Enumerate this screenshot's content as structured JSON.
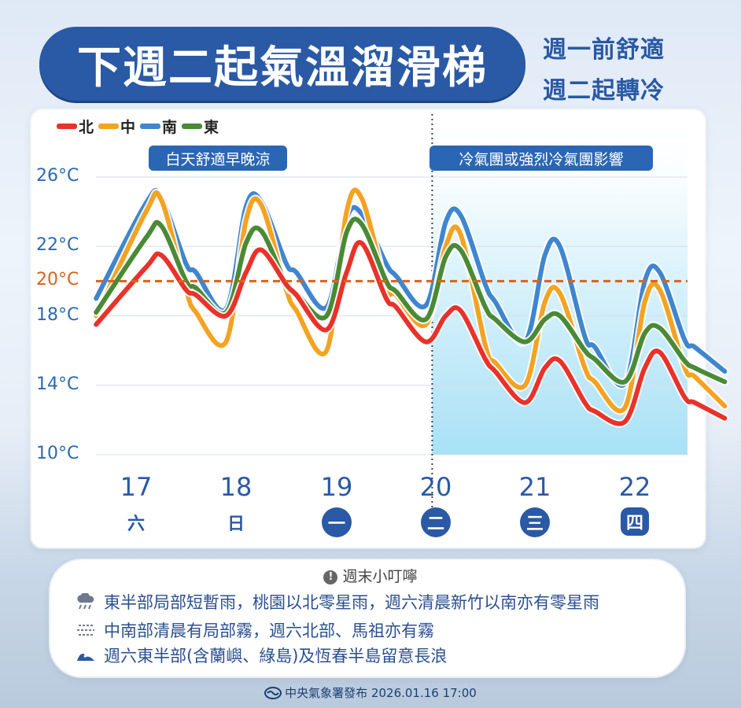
{
  "header": {
    "title": "下週二起氣溫溜滑梯",
    "subtitle_line1": "週一前舒適",
    "subtitle_line2": "週二起轉冷"
  },
  "tags": {
    "left": "白天舒適早晚涼",
    "right": "冷氣團或強烈冷氣團影響"
  },
  "colors": {
    "north": "#e8322a",
    "central": "#f3a322",
    "south": "#3f86cf",
    "east": "#4a8a36",
    "title_bg": "#2a59a5",
    "reference_line": "#d9621e",
    "cold_shade": "#bfe9f8"
  },
  "chart_data": {
    "type": "line",
    "y_unit": "°C",
    "ylim": [
      10,
      26
    ],
    "yticks": [
      {
        "value": 26,
        "label": "26°C"
      },
      {
        "value": 22,
        "label": "22°C"
      },
      {
        "value": 20,
        "label": "20°C"
      },
      {
        "value": 18,
        "label": "18°C"
      },
      {
        "value": 14,
        "label": "14°C"
      },
      {
        "value": 10,
        "label": "10°C"
      }
    ],
    "reference_line": {
      "value": 20,
      "style": "dashed"
    },
    "days": [
      {
        "day": "17",
        "weekday": "六",
        "marker": "none"
      },
      {
        "day": "18",
        "weekday": "日",
        "marker": "none"
      },
      {
        "day": "19",
        "weekday": "一",
        "marker": "circle"
      },
      {
        "day": "20",
        "weekday": "二",
        "marker": "circle"
      },
      {
        "day": "21",
        "weekday": "三",
        "marker": "circle"
      },
      {
        "day": "22",
        "weekday": "四",
        "marker": "rounded"
      }
    ],
    "x": [
      16.6,
      17.1,
      17.25,
      17.5,
      17.6,
      17.9,
      18.1,
      18.25,
      18.5,
      18.6,
      18.9,
      19.1,
      19.25,
      19.5,
      19.6,
      19.9,
      20.1,
      20.25,
      20.5,
      20.6,
      20.9,
      21.1,
      21.25,
      21.5,
      21.6,
      21.9,
      22.1,
      22.25,
      22.5,
      22.6,
      22.9
    ],
    "series": [
      {
        "name": "北",
        "color": "#e8322a",
        "values": [
          17.5,
          20.8,
          21.5,
          19.5,
          19.2,
          18.0,
          20.5,
          21.8,
          19.8,
          19.2,
          17.2,
          20.5,
          22.2,
          19.0,
          18.5,
          16.5,
          18.0,
          18.3,
          15.5,
          14.8,
          13.0,
          15.0,
          15.4,
          13.0,
          12.5,
          11.9,
          15.0,
          15.9,
          13.3,
          13.0,
          12.1
        ]
      },
      {
        "name": "中",
        "color": "#f3a322",
        "values": [
          18.0,
          24.0,
          24.7,
          19.5,
          18.2,
          16.5,
          23.5,
          24.4,
          19.5,
          18.3,
          16.0,
          24.0,
          24.8,
          19.7,
          19.2,
          17.5,
          22.0,
          22.7,
          16.3,
          15.3,
          14.0,
          18.8,
          19.3,
          15.0,
          14.2,
          12.7,
          18.8,
          19.5,
          15.0,
          14.5,
          12.8
        ]
      },
      {
        "name": "南",
        "color": "#3f86cf",
        "values": [
          19.0,
          24.5,
          24.8,
          21.0,
          20.5,
          18.4,
          24.3,
          24.6,
          21.0,
          20.5,
          18.5,
          23.6,
          23.9,
          21.0,
          20.3,
          18.6,
          23.4,
          23.8,
          19.8,
          18.8,
          16.5,
          21.5,
          22.0,
          16.8,
          16.2,
          14.1,
          20.0,
          20.5,
          16.6,
          16.2,
          14.8
        ]
      },
      {
        "name": "東",
        "color": "#4a8a36",
        "values": [
          18.2,
          22.5,
          23.2,
          20.0,
          19.6,
          18.2,
          22.2,
          22.9,
          19.8,
          19.3,
          18.0,
          22.8,
          23.3,
          20.0,
          19.4,
          17.8,
          21.4,
          21.8,
          18.5,
          17.8,
          16.5,
          17.8,
          18.0,
          16.0,
          15.5,
          14.2,
          17.0,
          17.3,
          15.4,
          15.0,
          14.2
        ]
      }
    ]
  },
  "notes": {
    "heading": "週末小叮嚀",
    "items": [
      {
        "icon": "rain-cloud-icon",
        "text": "東半部局部短暫雨，桃園以北零星雨，週六清晨新竹以南亦有零星雨"
      },
      {
        "icon": "fog-icon",
        "text": "中南部清晨有局部霧，週六北部、馬祖亦有霧"
      },
      {
        "icon": "wave-icon",
        "text": "週六東半部(含蘭嶼、綠島)及恆春半島留意長浪"
      }
    ]
  },
  "footer": {
    "text": "中央氣象署發布 2026.01.16 17:00"
  }
}
